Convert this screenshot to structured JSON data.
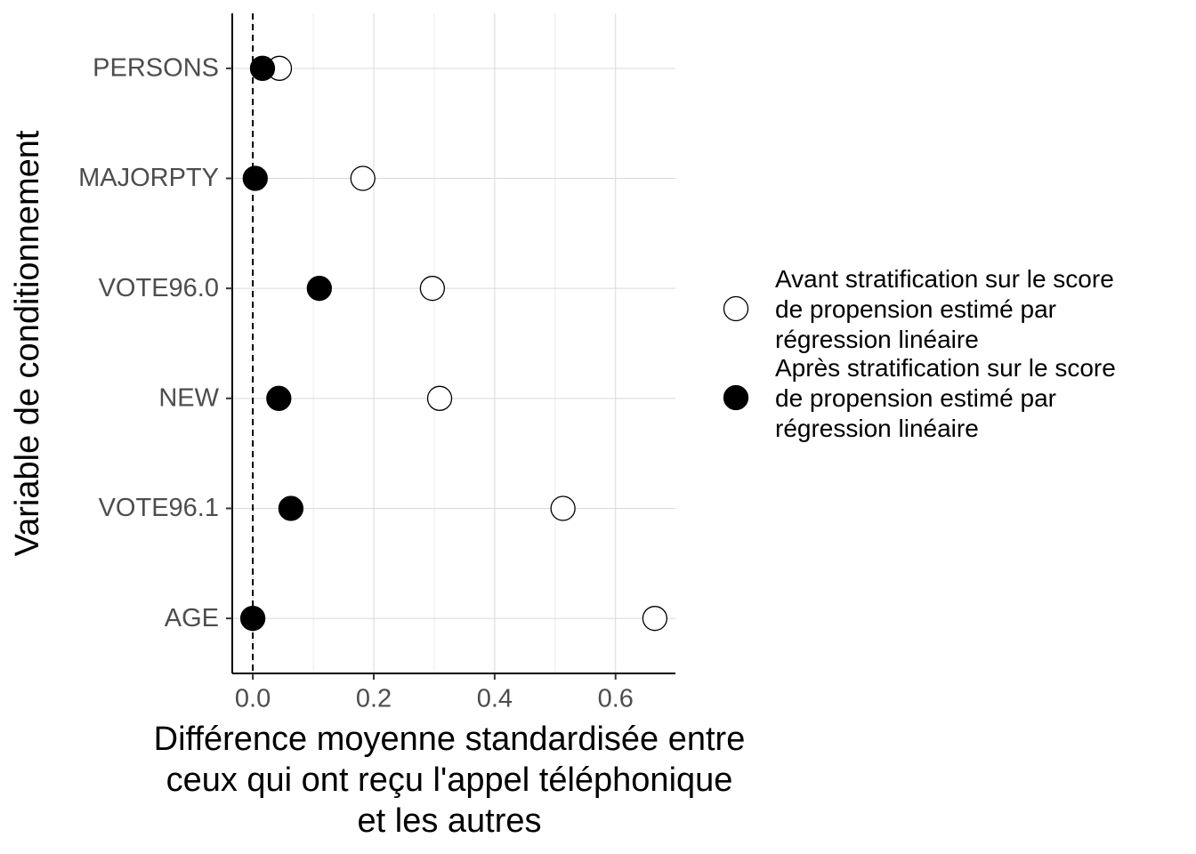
{
  "chart_data": {
    "type": "dot",
    "xlabel": "Différence moyenne standardisée entre\nceux qui ont reçu l'appel téléphonique\net les autres",
    "ylabel": "Variable de conditionnement",
    "categories": [
      "PERSONS",
      "MAJORPTY",
      "VOTE96.0",
      "NEW",
      "VOTE96.1",
      "AGE"
    ],
    "series": [
      {
        "name": "Avant stratification sur le score\nde propension estimé par\nrégression linéaire",
        "color": "#ffffff",
        "edgecolor": "#000000",
        "values": [
          0.044,
          0.182,
          0.297,
          0.309,
          0.513,
          0.665
        ]
      },
      {
        "name": "Après stratification sur le score\nde propension estimé par\nrégression linéaire",
        "color": "#000000",
        "edgecolor": "#000000",
        "values": [
          0.016,
          0.004,
          0.11,
          0.043,
          0.063,
          0.0
        ]
      }
    ],
    "xlim": [
      -0.034,
      0.699
    ],
    "xticks": [
      {
        "value": 0,
        "label": "0.0"
      },
      0.2,
      0.4,
      0.6
    ],
    "minor_xticks": [
      0.1,
      0.3,
      0.5
    ],
    "reference_line_x": 0,
    "grid": true,
    "legend": "right"
  }
}
